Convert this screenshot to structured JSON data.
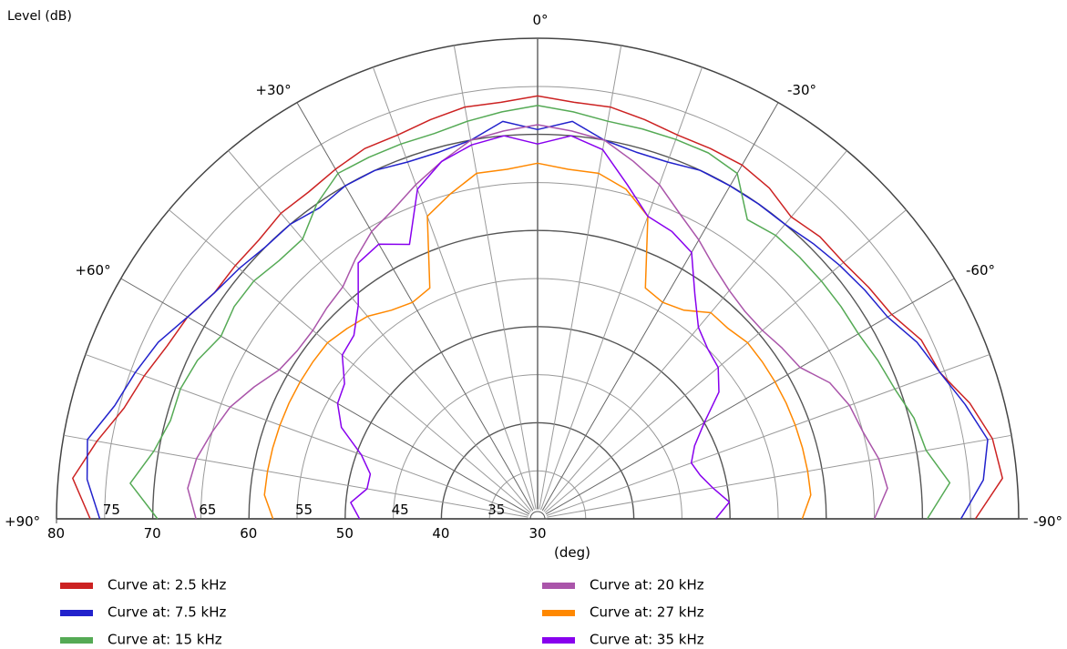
{
  "chart_data": {
    "type": "polar-half",
    "title": "",
    "radial_axis_label": "Level  (dB)",
    "angle_axis_label": "(deg)",
    "radial_range": [
      30,
      80
    ],
    "radial_ticks": [
      30,
      35,
      40,
      45,
      50,
      55,
      60,
      65,
      70,
      75,
      80
    ],
    "radial_tick_labels_left": [
      "80",
      "70",
      "60",
      "50",
      "40",
      "30"
    ],
    "radial_tick_labels_inner": [
      "75",
      "65",
      "55",
      "45",
      "35"
    ],
    "angle_labels": [
      {
        "deg": 0,
        "text": "0°"
      },
      {
        "deg": 30,
        "text": "+30°"
      },
      {
        "deg": -30,
        "text": "-30°"
      },
      {
        "deg": 60,
        "text": "+60°"
      },
      {
        "deg": -60,
        "text": "-60°"
      },
      {
        "deg": 90,
        "text": "+90°"
      },
      {
        "deg": -90,
        "text": "-90°"
      }
    ],
    "angles_deg": [
      -90,
      -85,
      -80,
      -75,
      -70,
      -65,
      -60,
      -55,
      -50,
      -45,
      -40,
      -35,
      -30,
      -25,
      -20,
      -15,
      -10,
      -5,
      0,
      5,
      10,
      15,
      20,
      25,
      30,
      35,
      40,
      45,
      50,
      55,
      60,
      65,
      70,
      75,
      80,
      85,
      90
    ],
    "legend_position": "bottom",
    "series": [
      {
        "name": "Curve at: 2.5 kHz",
        "color": "#cc2222",
        "values": [
          75.5,
          78.5,
          78.0,
          76.5,
          74.5,
          74.0,
          72.5,
          72.0,
          71.5,
          71.5,
          71.0,
          72.0,
          72.5,
          72.5,
          72.5,
          73.0,
          73.5,
          73.5,
          74.0,
          73.5,
          73.5,
          73.0,
          72.5,
          72.5,
          72.0,
          71.5,
          71.5,
          71.0,
          71.0,
          71.0,
          72.0,
          72.5,
          73.5,
          74.5,
          76.5,
          78.5,
          76.5
        ]
      },
      {
        "name": "Curve at: 7.5 kHz",
        "color": "#2222cc",
        "values": [
          74.0,
          76.5,
          77.5,
          76.0,
          74.5,
          73.5,
          72.0,
          71.5,
          71.0,
          70.5,
          70.0,
          70.0,
          70.0,
          70.0,
          69.5,
          69.5,
          70.0,
          71.5,
          70.5,
          71.5,
          70.0,
          69.5,
          69.5,
          70.0,
          70.0,
          69.5,
          70.0,
          70.0,
          70.5,
          71.0,
          72.0,
          73.5,
          74.5,
          75.5,
          77.5,
          77.0,
          75.5
        ]
      },
      {
        "name": "Curve at: 15 kHz",
        "color": "#55aa55",
        "values": [
          70.5,
          73.0,
          71.0,
          70.5,
          69.5,
          69.0,
          68.5,
          68.5,
          68.5,
          68.5,
          68.5,
          68.0,
          71.5,
          72.0,
          72.0,
          72.0,
          72.0,
          72.5,
          73.0,
          72.5,
          72.0,
          71.5,
          71.5,
          71.5,
          71.5,
          70.0,
          68.0,
          68.0,
          68.5,
          68.5,
          68.0,
          69.0,
          69.5,
          69.5,
          70.5,
          72.5,
          69.5
        ]
      },
      {
        "name": "Curve at: 20 kHz",
        "color": "#aa55aa",
        "values": [
          65.0,
          66.5,
          66.0,
          65.0,
          64.5,
          63.5,
          61.5,
          61.0,
          60.5,
          60.5,
          61.0,
          62.0,
          63.5,
          65.0,
          67.0,
          68.5,
          70.0,
          70.5,
          71.0,
          70.5,
          70.0,
          68.5,
          67.0,
          65.5,
          64.5,
          63.0,
          61.5,
          61.0,
          60.5,
          60.5,
          61.0,
          62.5,
          64.0,
          65.0,
          66.0,
          66.5,
          65.5
        ]
      },
      {
        "name": "Curve at: 27 kHz",
        "color": "#ff8800",
        "values": [
          57.5,
          58.5,
          58.5,
          58.5,
          58.5,
          58.5,
          58.5,
          58.5,
          58.5,
          58.0,
          58.0,
          56.5,
          56.0,
          56.5,
          63.5,
          65.5,
          66.5,
          66.5,
          67.0,
          66.5,
          66.5,
          65.0,
          63.5,
          56.5,
          56.0,
          56.5,
          57.5,
          58.0,
          58.5,
          58.5,
          58.5,
          58.5,
          58.5,
          58.5,
          58.5,
          58.5,
          57.5
        ]
      },
      {
        "name": "Curve at: 35 kHz",
        "color": "#8800ee",
        "values": [
          48.5,
          50.0,
          48.5,
          47.5,
          47.0,
          48.0,
          50.0,
          53.0,
          54.5,
          55.0,
          56.0,
          58.5,
          62.0,
          63.0,
          63.5,
          66.0,
          69.0,
          70.0,
          69.0,
          70.0,
          69.5,
          68.5,
          66.5,
          61.5,
          63.0,
          62.5,
          59.0,
          57.0,
          56.5,
          54.5,
          54.0,
          52.5,
          49.5,
          48.0,
          48.0,
          49.5,
          48.5
        ]
      }
    ]
  }
}
